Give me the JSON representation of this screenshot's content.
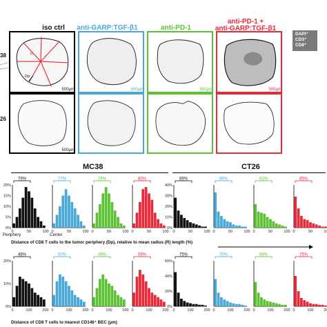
{
  "figure": {
    "column_titles": [
      {
        "text": "iso ctrl",
        "color": "#000000"
      },
      {
        "text": "anti-GARP:TGF-β1",
        "color": "#4aa8d8"
      },
      {
        "text": "anti-PD-1",
        "color": "#5cc234"
      },
      {
        "text": "anti-PD-1 +",
        "text2": "anti-GARP:TGF-β1",
        "color": "#e8293a"
      }
    ],
    "row_labels": [
      "38",
      "26"
    ],
    "scale_bar": "500μm",
    "legend_lines": [
      "DAPI⁺",
      "CD3⁺",
      "CD8⁺"
    ],
    "iso_annotations": [
      "R",
      "Dp"
    ],
    "colors": {
      "iso": "#111111",
      "garp": "#4aa8d8",
      "pd1": "#5cc234",
      "combo": "#e8293a",
      "guide": "#e8293a"
    }
  },
  "panels": {
    "mc38_label": "MC38",
    "ct26_label": "CT26",
    "xlabel_top": "Distance of CD8 T cells to the tumor periphery (Dp), relative to mean radius (R) length (%)",
    "xlabel_bottom": "Distance of CD8 T cells to nearest CD146⁺ BEC (μm)",
    "periphery_label": "Periphery",
    "center_label": "Center"
  },
  "chart_data": [
    {
      "type": "bar",
      "title": "MC38 Dp",
      "ylim": [
        0,
        20
      ],
      "yticks": [
        "0%",
        "5%",
        "10%",
        "15%",
        "20%"
      ],
      "xticks": [
        "0",
        "50",
        "100"
      ],
      "series": [
        {
          "name": "iso ctrl",
          "bracket": "79%",
          "color": "#111111",
          "values": [
            2,
            5,
            9,
            14,
            19,
            17,
            14,
            9,
            5,
            3,
            1
          ]
        },
        {
          "name": "anti-GARP:TGF-β1",
          "bracket": "77%",
          "color": "#4aa8d8",
          "values": [
            2,
            6,
            10,
            15,
            18,
            15,
            12,
            9,
            6,
            3,
            1
          ]
        },
        {
          "name": "anti-PD-1",
          "bracket": "78%",
          "color": "#5cc234",
          "values": [
            2,
            7,
            11,
            16,
            19,
            16,
            12,
            8,
            5,
            2,
            1
          ]
        },
        {
          "name": "anti-PD-1 + anti-GARP:TGF-β1",
          "bracket": "80%",
          "color": "#e8293a",
          "values": [
            2,
            7,
            12,
            18,
            19,
            16,
            13,
            7,
            4,
            2,
            1
          ]
        }
      ]
    },
    {
      "type": "bar",
      "title": "CT26 Dp",
      "ylim": [
        0,
        40
      ],
      "yticks": [
        "0%",
        "10%",
        "20%",
        "30%",
        "40%"
      ],
      "xticks": [
        "0",
        "50",
        "100"
      ],
      "series": [
        {
          "name": "iso ctrl",
          "bracket": "89%",
          "color": "#111111",
          "values": [
            28,
            16,
            12,
            9,
            7,
            5,
            4,
            3,
            2,
            1,
            1
          ]
        },
        {
          "name": "anti-GARP:TGF-β1",
          "bracket": "86%",
          "color": "#4aa8d8",
          "values": [
            33,
            15,
            11,
            8,
            6,
            5,
            3,
            2,
            2,
            1,
            1
          ]
        },
        {
          "name": "anti-PD-1",
          "bracket": "81%",
          "color": "#5cc234",
          "values": [
            22,
            15,
            14,
            13,
            10,
            8,
            6,
            4,
            3,
            2,
            1
          ]
        },
        {
          "name": "anti-PD-1 + anti-GARP:TGF-β1",
          "bracket": "85%",
          "color": "#e8293a",
          "values": [
            29,
            18,
            11,
            8,
            7,
            5,
            4,
            3,
            2,
            1,
            1
          ]
        }
      ]
    },
    {
      "type": "bar",
      "title": "MC38 BEC",
      "ylim": [
        0,
        20
      ],
      "yticks": [
        "0%",
        "10%",
        "20%"
      ],
      "xticks": [
        "0",
        "100",
        "200"
      ],
      "series": [
        {
          "name": "iso ctrl",
          "bracket": "48%",
          "color": "#111111",
          "values": [
            4,
            9,
            13,
            12,
            11,
            10,
            8,
            6,
            5,
            4,
            3
          ]
        },
        {
          "name": "anti-GARP:TGF-β1",
          "bracket": "50%",
          "color": "#4aa8d8",
          "values": [
            5,
            11,
            14,
            13,
            11,
            9,
            7,
            5,
            4,
            3,
            2
          ]
        },
        {
          "name": "anti-PD-1",
          "bracket": "49%",
          "color": "#5cc234",
          "values": [
            4,
            8,
            12,
            14,
            12,
            10,
            9,
            7,
            5,
            4,
            3
          ]
        },
        {
          "name": "anti-PD-1 + anti-GARP:TGF-β1",
          "bracket": "59%",
          "color": "#e8293a",
          "values": [
            6,
            13,
            16,
            14,
            11,
            8,
            6,
            5,
            4,
            3,
            2
          ]
        }
      ]
    },
    {
      "type": "bar",
      "title": "CT26 BEC",
      "ylim": [
        0,
        60
      ],
      "yticks": [
        "0%",
        "20%",
        "40%",
        "60%"
      ],
      "xticks": [
        "0",
        "100",
        "200"
      ],
      "series": [
        {
          "name": "iso ctrl",
          "bracket": "75%",
          "color": "#111111",
          "values": [
            45,
            18,
            10,
            7,
            5,
            4,
            3,
            3,
            2,
            2,
            1
          ]
        },
        {
          "name": "anti-GARP:TGF-β1",
          "bracket": "70%",
          "color": "#4aa8d8",
          "values": [
            36,
            18,
            12,
            9,
            7,
            5,
            4,
            3,
            3,
            2,
            1
          ]
        },
        {
          "name": "anti-PD-1",
          "bracket": "68%",
          "color": "#5cc234",
          "values": [
            32,
            18,
            12,
            9,
            7,
            6,
            5,
            4,
            3,
            2,
            2
          ]
        },
        {
          "name": "anti-PD-1 + anti-GARP:TGF-β1",
          "bracket": "75%",
          "color": "#e8293a",
          "values": [
            40,
            20,
            11,
            8,
            6,
            4,
            3,
            3,
            2,
            2,
            1
          ]
        }
      ]
    }
  ]
}
